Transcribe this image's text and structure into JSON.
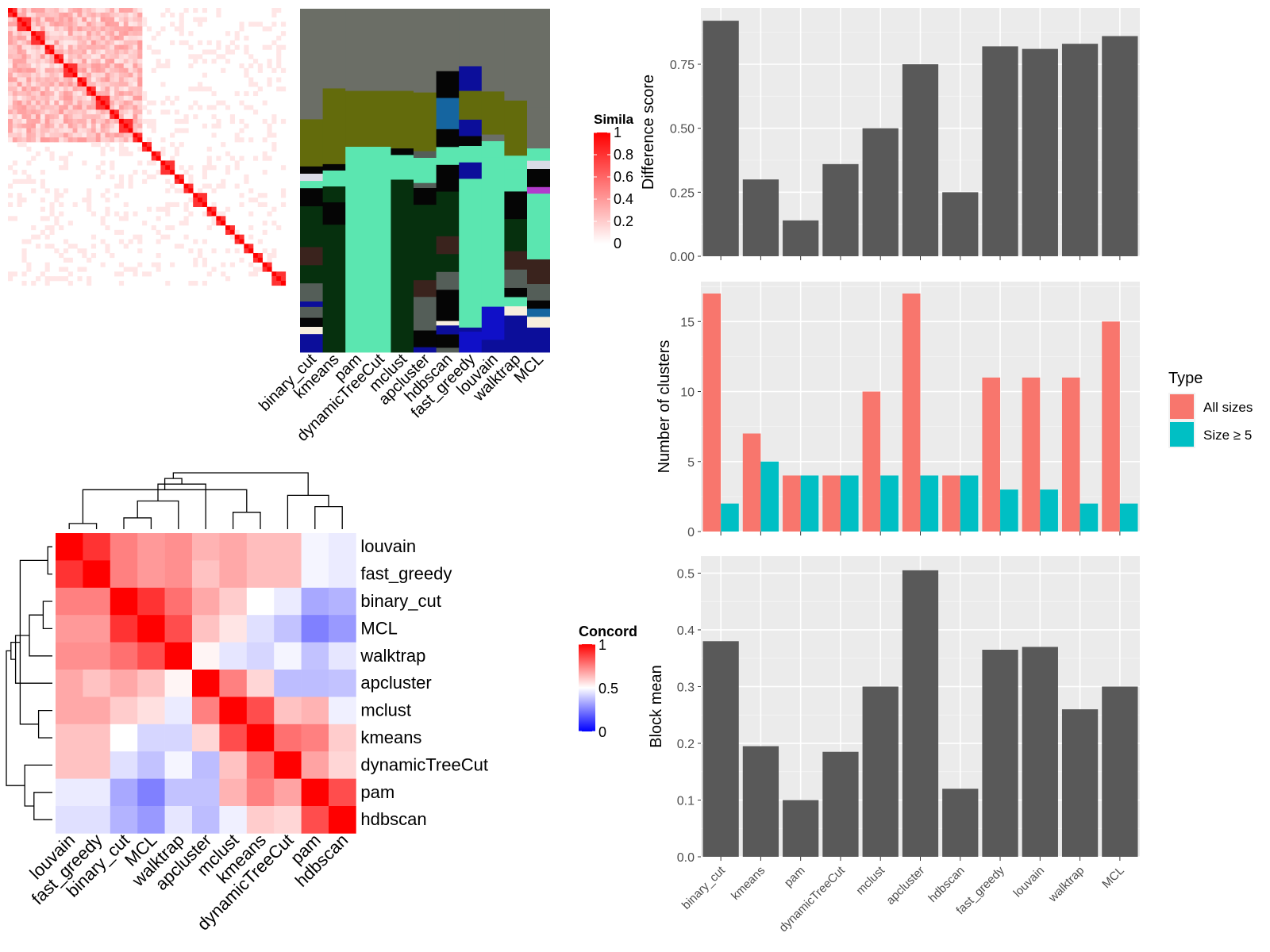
{
  "colors": {
    "sim_low": "#ffffff",
    "sim_high": "#ff0000",
    "conc_low": "#0000ff",
    "conc_mid": "#ffffff",
    "conc_high": "#ff0000",
    "bar_dark": "#595959",
    "all_sizes": "#f8766d",
    "size_ge5": "#00bfc4",
    "panel_bg": "#ebebeb",
    "grid_major": "#ffffff"
  },
  "similarity_heatmap": {
    "legend_title": "Simila",
    "legend_ticks": [
      "1",
      "0.8",
      "0.6",
      "0.4",
      "0.2",
      "0"
    ],
    "legend_tick_values": [
      1,
      0.8,
      0.6,
      0.4,
      0.2,
      0
    ]
  },
  "class_matrix": {
    "methods": [
      "binary_cut",
      "kmeans",
      "pam",
      "dynamicTreeCut",
      "mclust",
      "apcluster",
      "hdbscan",
      "fast_greedy",
      "louvain",
      "walktrap",
      "MCL"
    ],
    "palette": {
      "grey": "#6b6e66",
      "olive": "#636b0c",
      "mint": "#5be6b0",
      "dkgreen": "#06300e",
      "black": "#050505",
      "navy": "#0c0e9a",
      "steelblue": "#1565a0",
      "brown": "#3a231d",
      "slate": "#545e58",
      "magenta": "#b23ccc",
      "lavender": "#dadbe6",
      "blue": "#1010c8",
      "cream": "#f7eedd",
      "silver": "#7c7c7c",
      "dblue": "#171d99"
    },
    "columns": [
      [
        "grey",
        122,
        "olive",
        52,
        "black",
        8,
        "lavender",
        8,
        "mint",
        8,
        "black",
        20,
        "dkgreen",
        45,
        "brown",
        20,
        "dkgreen",
        20,
        "slate",
        20,
        "navy",
        6,
        "slate",
        12,
        "black",
        10,
        "cream",
        8,
        "navy",
        20
      ],
      [
        "grey",
        100,
        "olive",
        95,
        "black",
        8,
        "mint",
        20,
        "dkgreen",
        20,
        "black",
        28,
        "dkgreen",
        160
      ],
      [
        "grey",
        100,
        "olive",
        68,
        "mint",
        250
      ],
      [
        "grey",
        100,
        "olive",
        68,
        "mint",
        250
      ],
      [
        "grey",
        100,
        "olive",
        70,
        "black",
        8,
        "mint",
        30,
        "dkgreen",
        210
      ],
      [
        "grey",
        100,
        "olive",
        70,
        "slate",
        8,
        "mint",
        30,
        "slate",
        6,
        "black",
        20,
        "dkgreen",
        90,
        "brown",
        20,
        "slate",
        40,
        "black",
        20,
        "navy",
        6
      ],
      [
        "grey",
        70,
        "black",
        30,
        "steelblue",
        35,
        "black",
        20,
        "mint",
        20,
        "black",
        30,
        "dkgreen",
        50,
        "brown",
        20,
        "dkgreen",
        20,
        "slate",
        20,
        "black",
        35,
        "cream",
        5,
        "navy",
        10,
        "black",
        15,
        "slate",
        5
      ],
      [
        "grey",
        70,
        "navy",
        30,
        "olive",
        35,
        "navy",
        20,
        "black",
        12,
        "mint",
        20,
        "navy",
        20,
        "mint",
        181,
        "navy",
        5,
        "blue",
        25
      ],
      [
        "grey",
        100,
        "olive",
        52,
        "grey",
        8,
        "mint",
        20,
        "mint",
        180,
        "blue",
        40,
        "navy",
        15
      ],
      [
        "grey",
        100,
        "olive",
        60,
        "mint",
        15,
        "mint",
        24,
        "black",
        30,
        "dkgreen",
        35,
        "brown",
        20,
        "slate",
        20,
        "black",
        10,
        "mint",
        10,
        "cream",
        10,
        "navy",
        40
      ],
      [
        "grey",
        120,
        "grey",
        50,
        "mint",
        15,
        "lavender",
        10,
        "black",
        22,
        "magenta",
        8,
        "mint",
        80,
        "brown",
        30,
        "slate",
        20,
        "black",
        10,
        "steelblue",
        10,
        "cream",
        13,
        "navy",
        30
      ]
    ]
  },
  "concordance": {
    "legend_title": "Concord",
    "legend_ticks": [
      "1",
      "0.5",
      "0"
    ],
    "legend_tick_values": [
      1,
      0.5,
      0
    ],
    "methods": [
      "louvain",
      "fast_greedy",
      "binary_cut",
      "MCL",
      "walktrap",
      "apcluster",
      "mclust",
      "kmeans",
      "dynamicTreeCut",
      "pam",
      "hdbscan"
    ],
    "matrix": [
      [
        1.0,
        0.9,
        0.75,
        0.7,
        0.72,
        0.65,
        0.67,
        0.63,
        0.63,
        0.48,
        0.46
      ],
      [
        0.9,
        1.0,
        0.75,
        0.7,
        0.72,
        0.62,
        0.67,
        0.63,
        0.63,
        0.48,
        0.46
      ],
      [
        0.75,
        0.75,
        1.0,
        0.9,
        0.78,
        0.67,
        0.6,
        0.5,
        0.46,
        0.33,
        0.35
      ],
      [
        0.7,
        0.7,
        0.9,
        1.0,
        0.85,
        0.62,
        0.55,
        0.44,
        0.38,
        0.25,
        0.3
      ],
      [
        0.72,
        0.72,
        0.78,
        0.85,
        1.0,
        0.52,
        0.45,
        0.42,
        0.48,
        0.38,
        0.45
      ],
      [
        0.67,
        0.62,
        0.67,
        0.62,
        0.52,
        1.0,
        0.75,
        0.58,
        0.37,
        0.37,
        0.38
      ],
      [
        0.67,
        0.67,
        0.6,
        0.56,
        0.46,
        0.75,
        1.0,
        0.85,
        0.62,
        0.65,
        0.47
      ],
      [
        0.62,
        0.62,
        0.5,
        0.42,
        0.42,
        0.58,
        0.85,
        1.0,
        0.78,
        0.75,
        0.6
      ],
      [
        0.62,
        0.62,
        0.44,
        0.38,
        0.48,
        0.37,
        0.62,
        0.78,
        1.0,
        0.68,
        0.58
      ],
      [
        0.46,
        0.46,
        0.33,
        0.25,
        0.38,
        0.38,
        0.65,
        0.75,
        0.68,
        1.0,
        0.85
      ],
      [
        0.44,
        0.44,
        0.35,
        0.3,
        0.45,
        0.37,
        0.47,
        0.6,
        0.58,
        0.85,
        1.0
      ]
    ],
    "dendrogram": [
      [
        0,
        1
      ],
      [
        2,
        3
      ],
      [
        6,
        7
      ],
      [
        9,
        10
      ],
      [
        12,
        4
      ],
      [
        14,
        8
      ],
      [
        11,
        13
      ],
      [
        15,
        5
      ],
      [
        18,
        17
      ],
      [
        19,
        16
      ]
    ]
  },
  "chart_data": [
    {
      "type": "bar",
      "title": "",
      "xlabel": "",
      "ylabel": "Difference score",
      "categories": [
        "binary_cut",
        "kmeans",
        "pam",
        "dynamicTreeCut",
        "mclust",
        "apcluster",
        "hdbscan",
        "fast_greedy",
        "louvain",
        "walktrap",
        "MCL"
      ],
      "values": [
        0.92,
        0.3,
        0.14,
        0.36,
        0.5,
        0.75,
        0.25,
        0.82,
        0.81,
        0.83,
        0.86
      ],
      "ylim": [
        0,
        0.97
      ],
      "yticks": [
        0.0,
        0.25,
        0.5,
        0.75
      ],
      "ytick_labels": [
        "0.00",
        "0.25",
        "0.50",
        "0.75"
      ],
      "grid": true
    },
    {
      "type": "bar",
      "title": "",
      "xlabel": "",
      "ylabel": "Number of clusters",
      "categories": [
        "binary_cut",
        "kmeans",
        "pam",
        "dynamicTreeCut",
        "mclust",
        "apcluster",
        "hdbscan",
        "fast_greedy",
        "louvain",
        "walktrap",
        "MCL"
      ],
      "series": [
        {
          "name": "All sizes",
          "values": [
            17,
            7,
            4,
            4,
            10,
            17,
            4,
            11,
            11,
            11,
            15
          ]
        },
        {
          "name": "Size ≥ 5",
          "values": [
            2,
            5,
            4,
            4,
            4,
            4,
            4,
            3,
            3,
            2,
            2
          ]
        }
      ],
      "legend_title": "Type",
      "legend_position": "right",
      "ylim": [
        0,
        17.85
      ],
      "yticks": [
        0,
        5,
        10,
        15
      ],
      "ytick_labels": [
        "0",
        "5",
        "10",
        "15"
      ],
      "grid": true
    },
    {
      "type": "bar",
      "title": "",
      "xlabel": "",
      "ylabel": "Block mean",
      "categories": [
        "binary_cut",
        "kmeans",
        "pam",
        "dynamicTreeCut",
        "mclust",
        "apcluster",
        "hdbscan",
        "fast_greedy",
        "louvain",
        "walktrap",
        "MCL"
      ],
      "values": [
        0.38,
        0.195,
        0.1,
        0.185,
        0.3,
        0.505,
        0.12,
        0.365,
        0.37,
        0.26,
        0.3
      ],
      "ylim": [
        0,
        0.53
      ],
      "yticks": [
        0.0,
        0.1,
        0.2,
        0.3,
        0.4,
        0.5
      ],
      "ytick_labels": [
        "0.0",
        "0.1",
        "0.2",
        "0.3",
        "0.4",
        "0.5"
      ],
      "grid": true
    }
  ]
}
